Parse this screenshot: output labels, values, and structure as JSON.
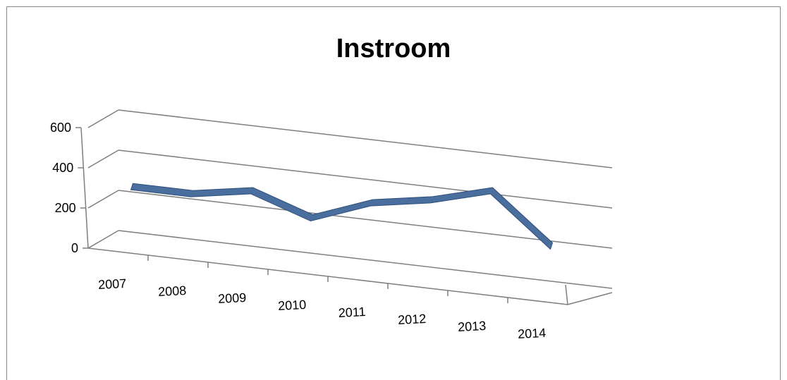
{
  "chart_data": {
    "type": "line",
    "title": "Instroom",
    "xlabel": "",
    "ylabel": "",
    "categories": [
      "2007",
      "2008",
      "2009",
      "2010",
      "2011",
      "2012",
      "2013",
      "2014"
    ],
    "series": [
      {
        "values": [
          280,
          280,
          330,
          230,
          340,
          390,
          470,
          230
        ]
      }
    ],
    "ylim": [
      0,
      600
    ],
    "yticks": [
      "0",
      "200",
      "400",
      "600"
    ],
    "grid": true,
    "legend": "none",
    "perspective": "3d",
    "colors": {
      "series": "#4a6f9e",
      "series_edge": "#2f4f7a",
      "grid": "#7f7f7f"
    }
  }
}
